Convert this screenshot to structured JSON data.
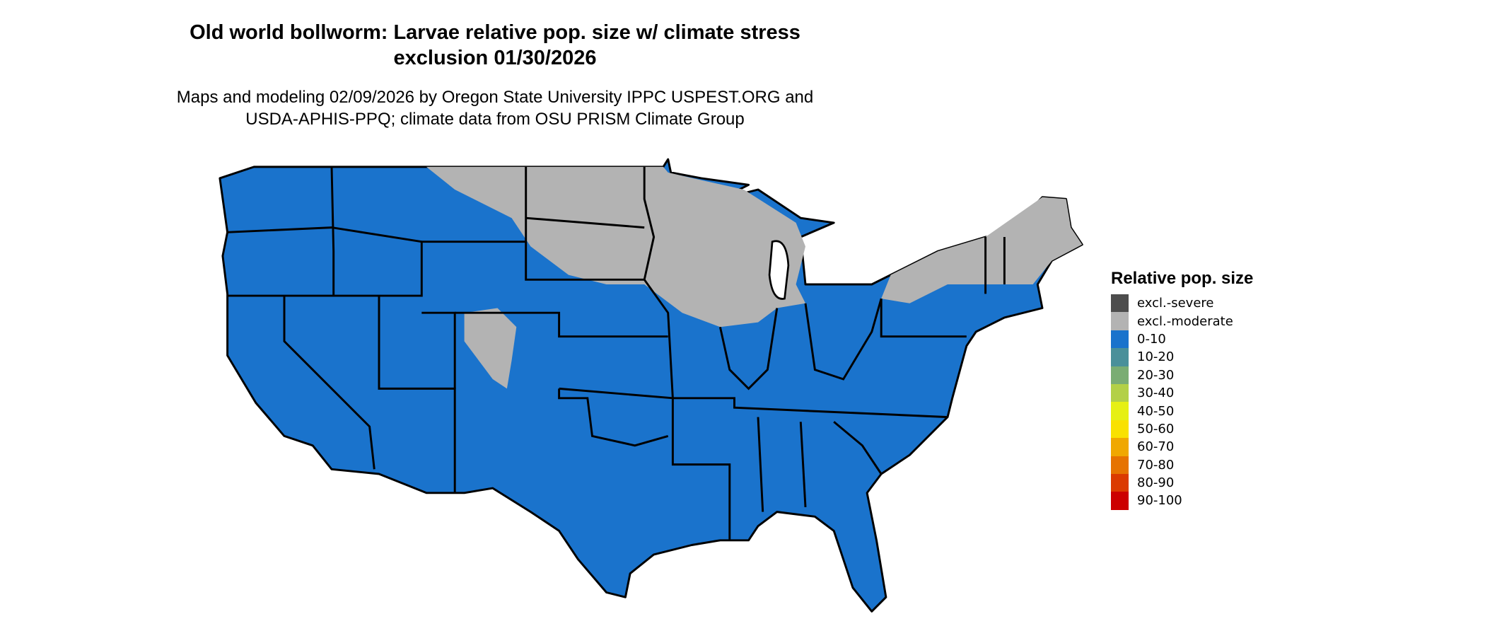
{
  "title": {
    "line1": "Old world bollworm: Larvae relative pop. size w/ climate stress",
    "line2": "exclusion 01/30/2026"
  },
  "subtitle": {
    "line1": "Maps and modeling 02/09/2026 by Oregon State University IPPC USPEST.ORG and",
    "line2": "USDA-APHIS-PPQ; climate data from OSU PRISM Climate Group"
  },
  "map": {
    "region": "Contiguous United States",
    "dominant_class": "0-10",
    "excluded_class": "excl.-moderate"
  },
  "legend": {
    "title": "Relative pop. size",
    "items": [
      {
        "label": "excl.-severe",
        "color": "#4d4d4d"
      },
      {
        "label": "excl.-moderate",
        "color": "#b3b3b3"
      },
      {
        "label": "0-10",
        "color": "#1a73cc"
      },
      {
        "label": "10-20",
        "color": "#4a909a"
      },
      {
        "label": "20-30",
        "color": "#7aad73"
      },
      {
        "label": "30-40",
        "color": "#b3d047"
      },
      {
        "label": "40-50",
        "color": "#e6f014"
      },
      {
        "label": "50-60",
        "color": "#f9e100"
      },
      {
        "label": "60-70",
        "color": "#f0a800"
      },
      {
        "label": "70-80",
        "color": "#e67300"
      },
      {
        "label": "80-90",
        "color": "#db3a00"
      },
      {
        "label": "90-100",
        "color": "#cc0000"
      }
    ]
  }
}
